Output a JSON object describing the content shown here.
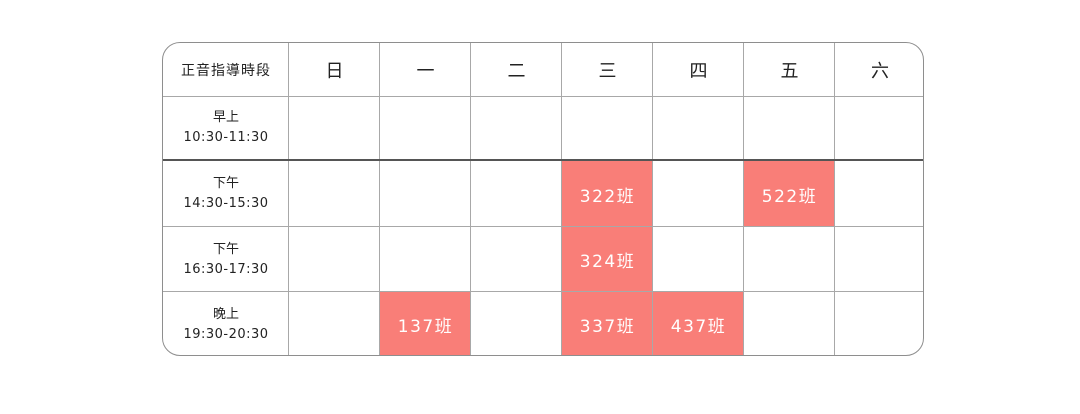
{
  "table": {
    "header_label": "正音指導時段",
    "days": [
      "日",
      "一",
      "二",
      "三",
      "四",
      "五",
      "六"
    ],
    "slots": [
      {
        "name": "早上",
        "range": "10:30-11:30",
        "cells": [
          "",
          "",
          "",
          "",
          "",
          "",
          ""
        ]
      },
      {
        "name": "下午",
        "range": "14:30-15:30",
        "cells": [
          "",
          "",
          "",
          "322班",
          "",
          "522班",
          ""
        ]
      },
      {
        "name": "下午",
        "range": "16:30-17:30",
        "cells": [
          "",
          "",
          "",
          "324班",
          "",
          "",
          ""
        ]
      },
      {
        "name": "晚上",
        "range": "19:30-20:30",
        "cells": [
          "",
          "137班",
          "",
          "337班",
          "437班",
          "",
          ""
        ]
      }
    ]
  },
  "colors": {
    "class_fill": "#f97e78",
    "grid_line": "#a8a8a8",
    "border": "#8e8e8e",
    "separator": "#555555"
  }
}
